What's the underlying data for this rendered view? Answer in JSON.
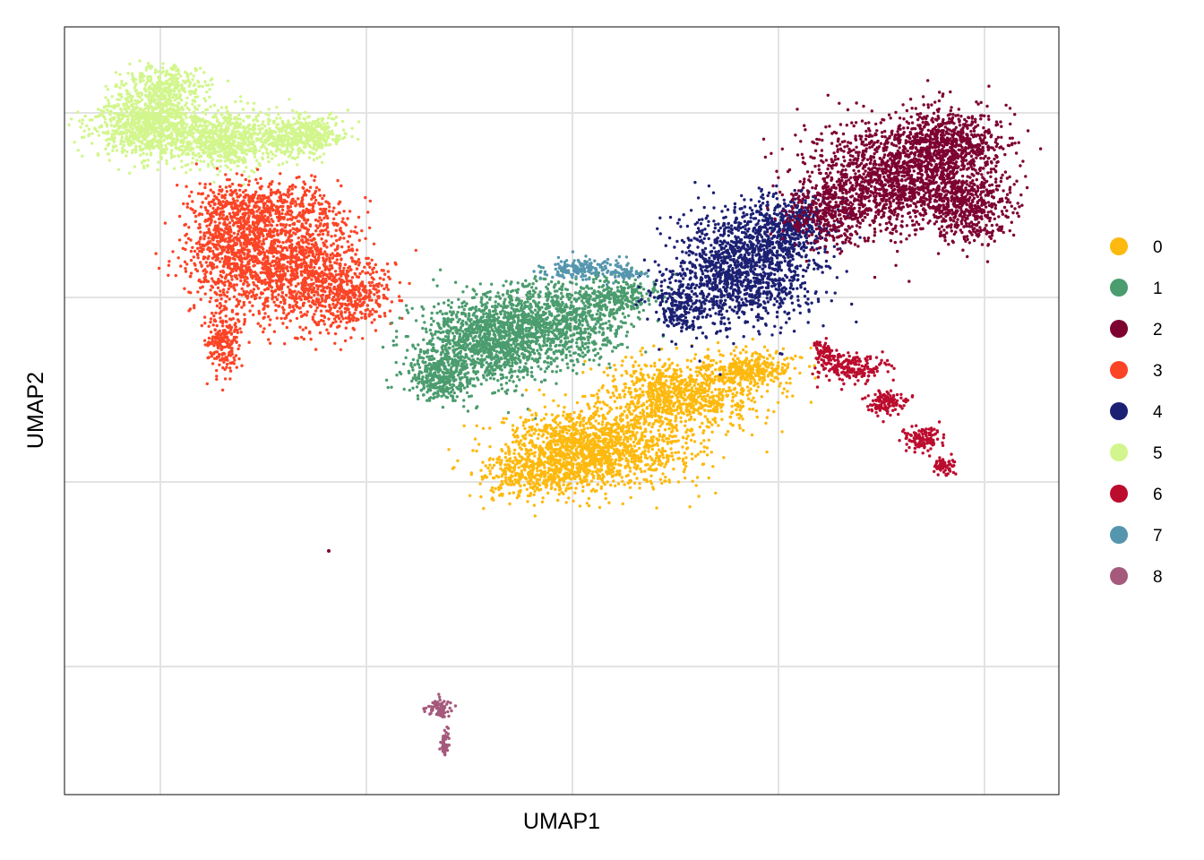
{
  "chart_data": {
    "type": "scatter",
    "title": "",
    "xlabel": "UMAP1",
    "ylabel": "UMAP2",
    "x_ticks_labeled": false,
    "y_ticks_labeled": false,
    "grid": true,
    "legend_position": "right",
    "series": [
      {
        "name": "0",
        "color": "#FDB90E"
      },
      {
        "name": "1",
        "color": "#4B9C6E"
      },
      {
        "name": "2",
        "color": "#7D0131"
      },
      {
        "name": "3",
        "color": "#FB4426"
      },
      {
        "name": "4",
        "color": "#1C2073"
      },
      {
        "name": "5",
        "color": "#D2F68D"
      },
      {
        "name": "6",
        "color": "#BB0C2E"
      },
      {
        "name": "7",
        "color": "#5596AE"
      },
      {
        "name": "8",
        "color": "#A5597C"
      }
    ]
  }
}
